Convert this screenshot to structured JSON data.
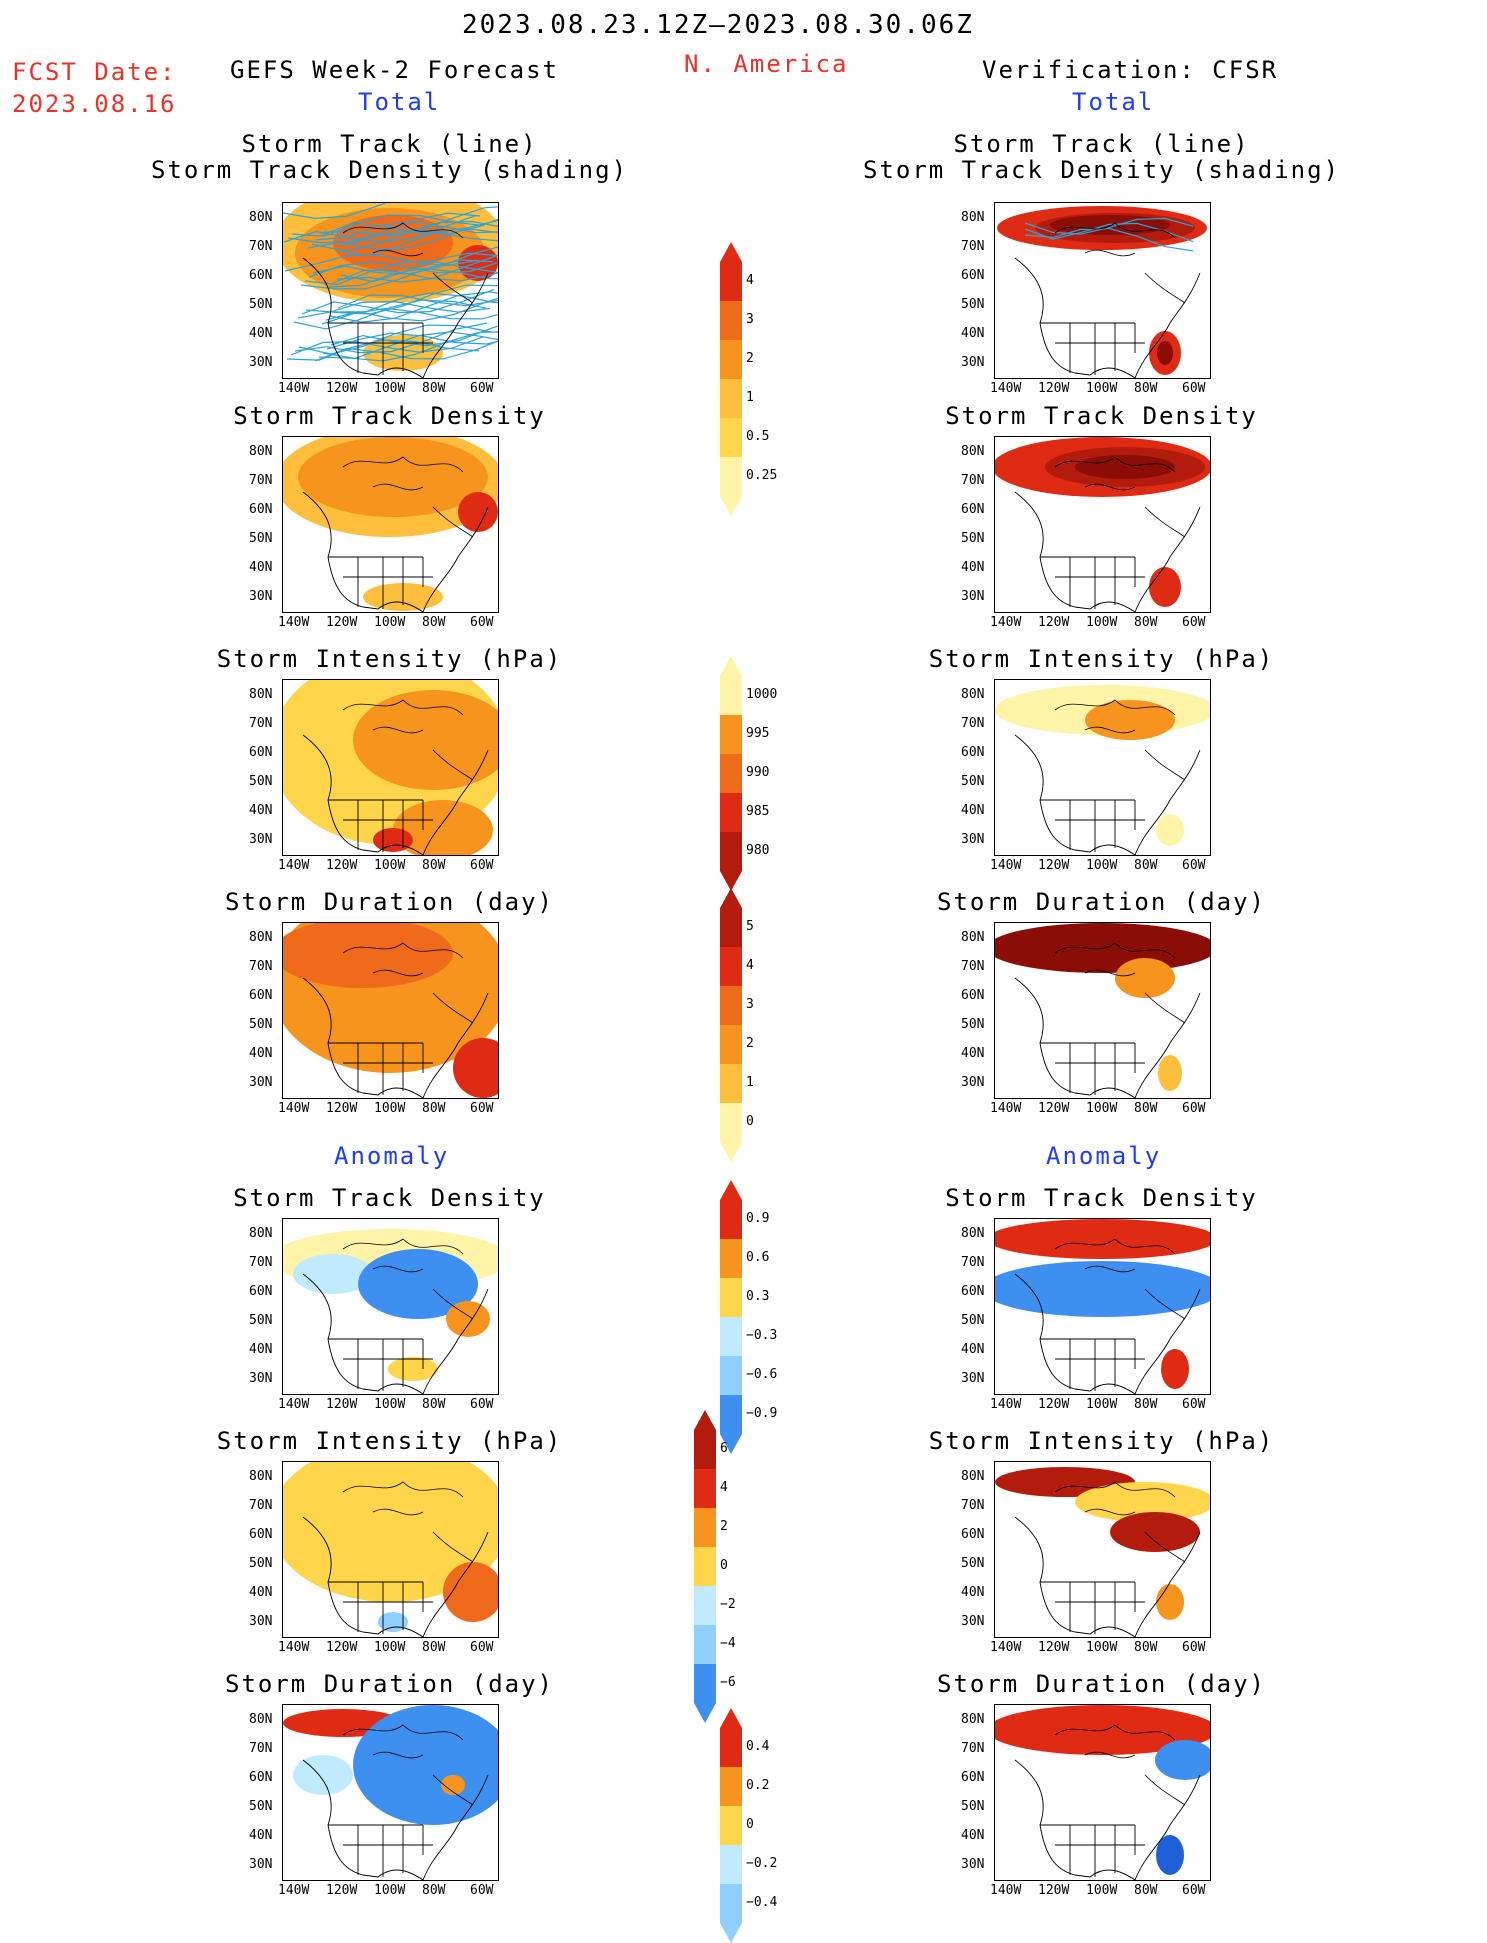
{
  "header": {
    "period": "2023.08.23.12Z–2023.08.30.06Z",
    "fcst_label": "FCST Date:",
    "fcst_date": "2023.08.16",
    "forecast_title": "GEFS Week-2 Forecast",
    "region": "N. America",
    "verification_title": "Verification: CFSR",
    "total_left": "Total",
    "total_right": "Total",
    "anomaly_left": "Anomaly",
    "anomaly_right": "Anomaly"
  },
  "axes": {
    "lat_ticks": [
      "80N",
      "70N",
      "60N",
      "50N",
      "40N",
      "30N"
    ],
    "lon_ticks": [
      "140W",
      "120W",
      "100W",
      "80W",
      "60W"
    ]
  },
  "panels": {
    "track_title_1": "Storm Track (line)",
    "track_title_2": "Storm Track Density (shading)",
    "density": "Storm Track Density",
    "intensity": "Storm Intensity (hPa)",
    "duration": "Storm Duration (day)"
  },
  "colorbars": {
    "density_total": [
      "4",
      "3",
      "2",
      "1",
      "0.5",
      "0.25"
    ],
    "intensity_total": [
      "1000",
      "995",
      "990",
      "985",
      "980"
    ],
    "duration_total": [
      "5",
      "4",
      "3",
      "2",
      "1",
      "0"
    ],
    "density_anom": [
      "0.9",
      "0.6",
      "0.3",
      "−0.3",
      "−0.6",
      "−0.9"
    ],
    "intensity_anom": [
      "6",
      "4",
      "2",
      "0",
      "−2",
      "−4",
      "−6"
    ],
    "duration_anom": [
      "0.4",
      "0.2",
      "0",
      "−0.2",
      "−0.4"
    ]
  },
  "colors": {
    "lightyellow": "#fff4a8",
    "yellow": "#ffd54a",
    "lightorange": "#ffbe3c",
    "orange": "#f7941d",
    "darkorange": "#ef6a1a",
    "red": "#e02b14",
    "darkred": "#b31c0d",
    "maroon": "#8b0d05",
    "lightblue": "#bfeaff",
    "skyblue": "#8fd0ff",
    "blue": "#3d90f0",
    "darkblue": "#1f5fd8",
    "track": "#2fa3d6",
    "title_red": "#e8332a",
    "title_blue": "#1f3cf0"
  }
}
